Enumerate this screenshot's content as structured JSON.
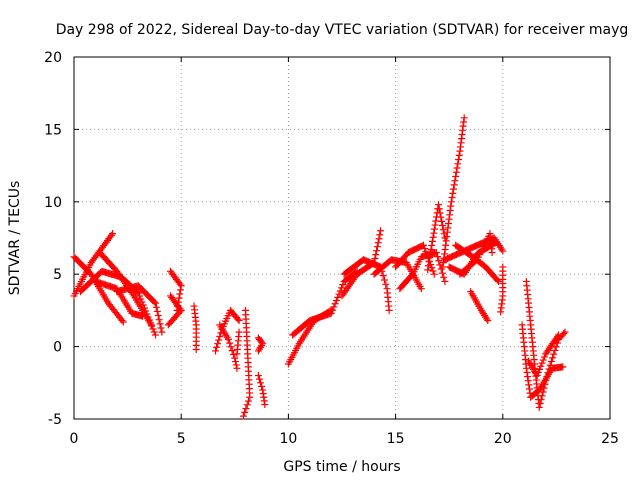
{
  "chart_data": {
    "type": "scatter",
    "title": "Day 298 of 2022, Sidereal Day-to-day VTEC variation (SDTVAR) for receiver mayg",
    "xlabel": "GPS time / hours",
    "ylabel": "SDTVAR / TECUs",
    "xlim": [
      0,
      25
    ],
    "ylim": [
      -5,
      20
    ],
    "xticks": [
      "0",
      "5",
      "10",
      "15",
      "20",
      "25"
    ],
    "yticks": [
      "-5",
      "0",
      "5",
      "10",
      "15",
      "20"
    ],
    "grid": true,
    "marker": "+",
    "color": "#ff0000",
    "series": [
      {
        "name": "SDTVAR",
        "tracks": [
          [
            [
              0,
              3.5
            ],
            [
              0.8,
              5.8
            ],
            [
              1.8,
              7.8
            ]
          ],
          [
            [
              0,
              6.2
            ],
            [
              0.8,
              5.0
            ],
            [
              1.6,
              3.0
            ],
            [
              2.3,
              1.7
            ]
          ],
          [
            [
              0.3,
              3.8
            ],
            [
              1.3,
              5.2
            ],
            [
              2.2,
              4.8
            ],
            [
              3.0,
              3.7
            ],
            [
              3.8,
              0.8
            ]
          ],
          [
            [
              1.2,
              6.5
            ],
            [
              2.0,
              5.2
            ],
            [
              2.8,
              3.5
            ],
            [
              3.6,
              1.5
            ]
          ],
          [
            [
              1.0,
              4.5
            ],
            [
              2.0,
              4.0
            ],
            [
              2.7,
              2.3
            ],
            [
              3.2,
              2.1
            ]
          ],
          [
            [
              2.0,
              3.8
            ],
            [
              3.0,
              4.2
            ],
            [
              3.8,
              3.0
            ],
            [
              4.1,
              1.0
            ]
          ],
          [
            [
              4.5,
              5.2
            ],
            [
              5.0,
              4.2
            ],
            [
              4.8,
              2.5
            ]
          ],
          [
            [
              4.5,
              3.5
            ],
            [
              5.0,
              2.5
            ],
            [
              4.4,
              1.5
            ]
          ],
          [
            [
              5.6,
              2.8
            ],
            [
              5.7,
              1.5
            ],
            [
              5.7,
              -0.2
            ]
          ],
          [
            [
              6.6,
              -0.3
            ],
            [
              6.9,
              1.2
            ],
            [
              7.3,
              2.5
            ],
            [
              7.7,
              1.8
            ]
          ],
          [
            [
              6.8,
              1.5
            ],
            [
              7.2,
              0.5
            ],
            [
              7.5,
              -0.8
            ],
            [
              7.6,
              -1.5
            ]
          ],
          [
            [
              7.7,
              1.0
            ],
            [
              7.6,
              -0.5
            ]
          ],
          [
            [
              8.0,
              2.5
            ],
            [
              8.1,
              -0.5
            ],
            [
              8.2,
              -3.5
            ],
            [
              7.9,
              -4.8
            ]
          ],
          [
            [
              8.6,
              -2.0
            ],
            [
              8.8,
              -3.0
            ],
            [
              8.9,
              -4.0
            ]
          ],
          [
            [
              8.6,
              0.6
            ],
            [
              8.8,
              0.2
            ],
            [
              8.6,
              -0.3
            ]
          ],
          [
            [
              10.0,
              -1.2
            ],
            [
              10.5,
              0.2
            ],
            [
              11.2,
              1.8
            ],
            [
              12.0,
              2.5
            ]
          ],
          [
            [
              10.2,
              0.8
            ],
            [
              11.0,
              1.8
            ],
            [
              12.0,
              2.3
            ],
            [
              12.6,
              4.5
            ],
            [
              13.2,
              5.2
            ]
          ],
          [
            [
              12.5,
              3.5
            ],
            [
              13.2,
              5.0
            ],
            [
              14.0,
              5.8
            ],
            [
              14.3,
              8.0
            ]
          ],
          [
            [
              12.6,
              5.0
            ],
            [
              13.5,
              6.0
            ],
            [
              14.3,
              5.5
            ],
            [
              14.6,
              4.0
            ],
            [
              14.7,
              2.5
            ]
          ],
          [
            [
              14.0,
              5.0
            ],
            [
              14.8,
              6.0
            ],
            [
              15.5,
              5.8
            ],
            [
              16.2,
              4.0
            ]
          ],
          [
            [
              15.0,
              5.5
            ],
            [
              15.6,
              6.5
            ],
            [
              16.3,
              7.0
            ],
            [
              16.8,
              5.0
            ]
          ],
          [
            [
              15.2,
              4.0
            ],
            [
              15.8,
              5.0
            ],
            [
              16.2,
              6.2
            ],
            [
              16.9,
              6.5
            ],
            [
              17.3,
              4.5
            ]
          ],
          [
            [
              16.5,
              5.3
            ],
            [
              17.0,
              9.8
            ],
            [
              17.3,
              7.5
            ]
          ],
          [
            [
              17.2,
              5.5
            ],
            [
              17.6,
              10.0
            ],
            [
              18.0,
              13.5
            ],
            [
              18.2,
              15.8
            ]
          ],
          [
            [
              17.3,
              6.0
            ],
            [
              18.5,
              6.8
            ],
            [
              19.6,
              7.5
            ],
            [
              20.0,
              6.6
            ]
          ],
          [
            [
              17.8,
              7.0
            ],
            [
              18.6,
              6.2
            ],
            [
              19.2,
              5.5
            ],
            [
              19.8,
              4.5
            ]
          ],
          [
            [
              18.0,
              5.0
            ],
            [
              18.8,
              6.0
            ],
            [
              19.4,
              7.8
            ],
            [
              19.5,
              6.5
            ]
          ],
          [
            [
              18.5,
              3.8
            ],
            [
              19.0,
              2.5
            ],
            [
              19.3,
              1.8
            ]
          ],
          [
            [
              17.5,
              5.5
            ],
            [
              18.2,
              5.0
            ],
            [
              18.8,
              6.4
            ],
            [
              19.7,
              7.2
            ]
          ],
          [
            [
              20.0,
              5.5
            ],
            [
              20.0,
              3.5
            ],
            [
              19.9,
              2.4
            ]
          ],
          [
            [
              21.1,
              4.5
            ],
            [
              21.3,
              1.5
            ],
            [
              21.5,
              -1.5
            ],
            [
              21.7,
              -4.2
            ],
            [
              22.1,
              -1.8
            ],
            [
              22.6,
              0.5
            ],
            [
              22.9,
              1.0
            ]
          ],
          [
            [
              20.9,
              1.5
            ],
            [
              21.1,
              -1.5
            ],
            [
              21.3,
              -3.5
            ],
            [
              21.7,
              -3.0
            ],
            [
              22.3,
              -1.5
            ],
            [
              22.8,
              -1.4
            ]
          ],
          [
            [
              21.2,
              -1.0
            ],
            [
              21.6,
              -2.0
            ],
            [
              22.0,
              -0.5
            ],
            [
              22.6,
              0.8
            ]
          ]
        ]
      }
    ]
  }
}
